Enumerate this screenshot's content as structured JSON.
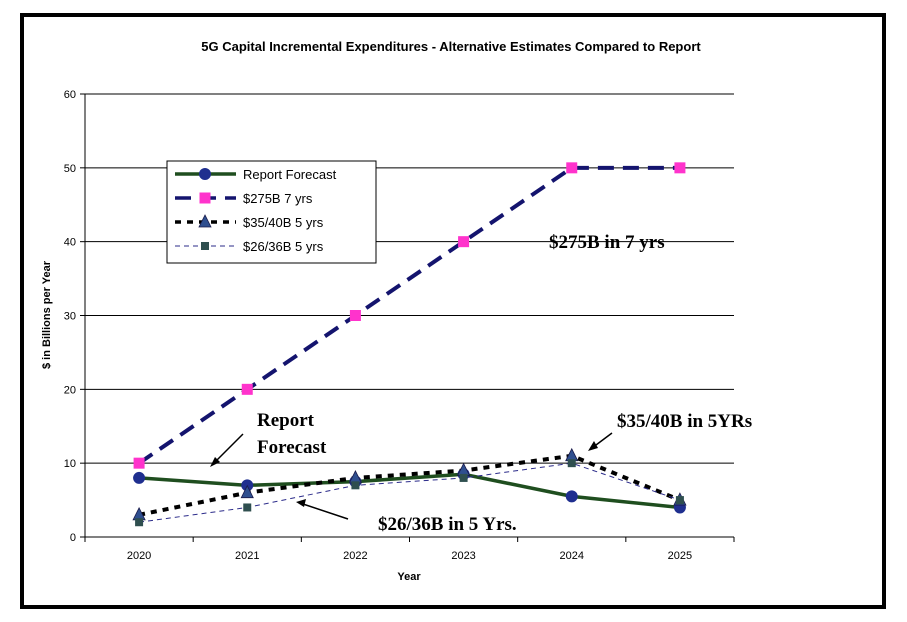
{
  "chart_data": {
    "type": "line",
    "title": "5G Capital Incremental Expenditures - Alternative Estimates Compared to Report",
    "xlabel": "Year",
    "ylabel": "$ in Billions per Year",
    "ylim": [
      0,
      60
    ],
    "yticks": [
      0,
      10,
      20,
      30,
      40,
      50,
      60
    ],
    "categories": [
      "2020",
      "2021",
      "2022",
      "2023",
      "2024",
      "2025"
    ],
    "grid": "horizontal",
    "legend_position": "upper-left",
    "series": [
      {
        "name": "Report Forecast",
        "values": [
          8,
          7,
          7.5,
          8.5,
          5.5,
          4
        ],
        "color": "#1f4e1f",
        "marker": "circle",
        "marker_color": "#1f2f8f",
        "line": "solid"
      },
      {
        "name": "$275B 7 yrs",
        "values": [
          10,
          20,
          30,
          40,
          50,
          50
        ],
        "color": "#14146e",
        "marker": "square",
        "marker_color": "#ff33cc",
        "line": "dashed"
      },
      {
        "name": "$35/40B 5 yrs",
        "values": [
          3,
          6,
          8,
          9,
          11,
          5
        ],
        "color": "#000000",
        "marker": "triangle",
        "marker_color": "#2f4f8f",
        "line": "dotted"
      },
      {
        "name": "$26/36B 5 yrs",
        "values": [
          2,
          4,
          7,
          8,
          10,
          5
        ],
        "color": "#2b2b8a",
        "marker": "square-small",
        "marker_color": "#2f4f4f",
        "line": "thin-dashed"
      }
    ],
    "annotations": [
      {
        "text": "$275B in 7 yrs"
      },
      {
        "text": "Report"
      },
      {
        "text": "Forecast"
      },
      {
        "text": "$35/40B in 5YRs"
      },
      {
        "text": "$26/36B in 5 Yrs."
      }
    ]
  }
}
